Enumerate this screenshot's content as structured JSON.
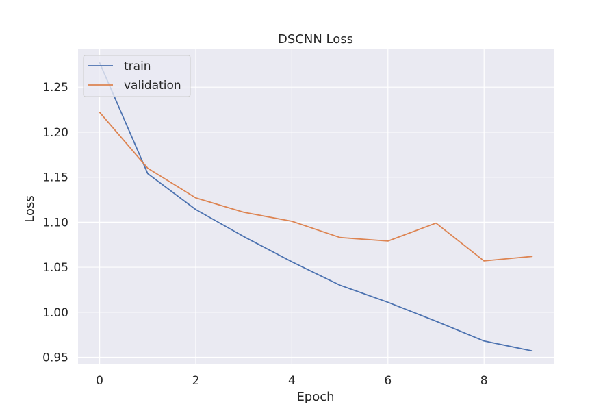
{
  "chart_data": {
    "type": "line",
    "title": "DSCNN Loss",
    "xlabel": "Epoch",
    "ylabel": "Loss",
    "x": [
      0,
      1,
      2,
      3,
      4,
      5,
      6,
      7,
      8,
      9
    ],
    "xticks": [
      0,
      2,
      4,
      6,
      8
    ],
    "yticks": [
      0.95,
      1.0,
      1.05,
      1.1,
      1.15,
      1.2,
      1.25
    ],
    "xlim": [
      -0.45,
      9.45
    ],
    "ylim": [
      0.942,
      1.292
    ],
    "grid": true,
    "legend_position": "top-left",
    "background_color": "#eaeaf2",
    "grid_color": "#ffffff",
    "series": [
      {
        "name": "train",
        "color": "#4c72b0",
        "values": [
          1.277,
          1.154,
          1.114,
          1.084,
          1.056,
          1.03,
          1.011,
          0.99,
          0.968,
          0.957
        ]
      },
      {
        "name": "validation",
        "color": "#dd8452",
        "values": [
          1.222,
          1.16,
          1.127,
          1.111,
          1.101,
          1.083,
          1.079,
          1.099,
          1.057,
          1.062
        ]
      }
    ]
  }
}
